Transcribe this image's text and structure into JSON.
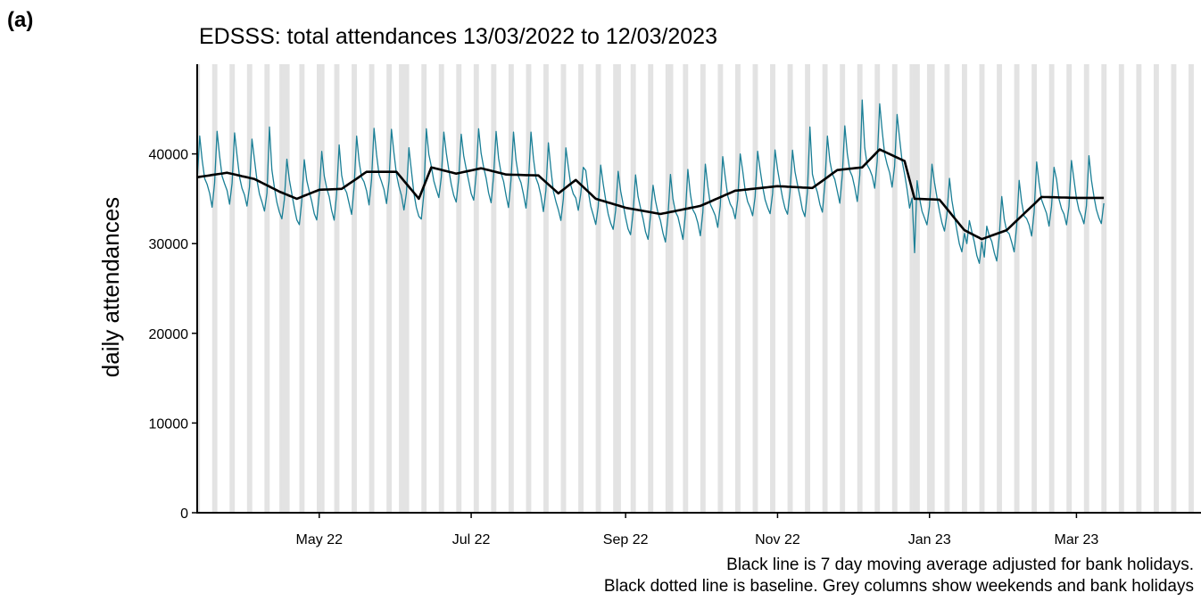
{
  "panel_label": "(a)",
  "chart_data": {
    "type": "line",
    "title": "EDSSS: total attendances 13/03/2022 to 12/03/2023",
    "xlabel": "",
    "ylabel": "daily attendances",
    "x_start": "2022-03-13",
    "x_end": "2023-03-12",
    "xlim": [
      "2022-03-13",
      "2023-04-20"
    ],
    "ylim": [
      0,
      50000
    ],
    "y_ticks": [
      0,
      10000,
      20000,
      30000,
      40000
    ],
    "x_ticks": [
      {
        "date": "2022-05-01",
        "label": "May 22"
      },
      {
        "date": "2022-07-01",
        "label": "Jul 22"
      },
      {
        "date": "2022-09-01",
        "label": "Sep 22"
      },
      {
        "date": "2022-11-01",
        "label": "Nov 22"
      },
      {
        "date": "2023-01-01",
        "label": "Jan 23"
      },
      {
        "date": "2023-03-01",
        "label": "Mar 23"
      }
    ],
    "bank_holidays": [
      "2022-04-15",
      "2022-04-18",
      "2022-05-02",
      "2022-06-02",
      "2022-06-03",
      "2022-08-29",
      "2022-09-19",
      "2022-12-26",
      "2022-12-27",
      "2023-01-02"
    ],
    "weekend_shading": true,
    "series": [
      {
        "label": "daily",
        "color": "#1a7f96",
        "weekly_peak_monday": true,
        "approx_values_by_date": [
          [
            "2022-03-13",
            37000
          ],
          [
            "2022-03-14",
            42000
          ],
          [
            "2022-04-11",
            43000
          ],
          [
            "2022-05-09",
            41000
          ],
          [
            "2022-06-13",
            42800
          ],
          [
            "2022-07-11",
            42500
          ],
          [
            "2022-08-15",
            38500
          ],
          [
            "2022-09-12",
            36500
          ],
          [
            "2022-10-17",
            40000
          ],
          [
            "2022-11-14",
            43000
          ],
          [
            "2022-12-05",
            46000
          ],
          [
            "2022-12-26",
            29000
          ],
          [
            "2023-01-16",
            30000
          ],
          [
            "2023-01-23",
            28500
          ],
          [
            "2023-02-20",
            38500
          ],
          [
            "2023-03-06",
            39800
          ],
          [
            "2023-03-12",
            34500
          ]
        ]
      },
      {
        "label": "7 day moving average",
        "color": "#000000",
        "values_by_date": [
          [
            "2022-03-13",
            37400
          ],
          [
            "2022-03-25",
            37900
          ],
          [
            "2022-04-05",
            37200
          ],
          [
            "2022-04-15",
            35800
          ],
          [
            "2022-04-22",
            35000
          ],
          [
            "2022-05-01",
            36000
          ],
          [
            "2022-05-10",
            36100
          ],
          [
            "2022-05-20",
            38000
          ],
          [
            "2022-06-01",
            38000
          ],
          [
            "2022-06-10",
            35000
          ],
          [
            "2022-06-15",
            38500
          ],
          [
            "2022-06-25",
            37800
          ],
          [
            "2022-07-05",
            38400
          ],
          [
            "2022-07-15",
            37700
          ],
          [
            "2022-07-28",
            37600
          ],
          [
            "2022-08-05",
            35600
          ],
          [
            "2022-08-12",
            37100
          ],
          [
            "2022-08-20",
            35000
          ],
          [
            "2022-09-01",
            34000
          ],
          [
            "2022-09-15",
            33300
          ],
          [
            "2022-10-01",
            34200
          ],
          [
            "2022-10-15",
            35900
          ],
          [
            "2022-11-01",
            36400
          ],
          [
            "2022-11-15",
            36200
          ],
          [
            "2022-11-25",
            38200
          ],
          [
            "2022-12-05",
            38500
          ],
          [
            "2022-12-12",
            40500
          ],
          [
            "2022-12-22",
            39200
          ],
          [
            "2022-12-26",
            35000
          ],
          [
            "2023-01-05",
            34900
          ],
          [
            "2023-01-15",
            31500
          ],
          [
            "2023-01-22",
            30500
          ],
          [
            "2023-02-01",
            31500
          ],
          [
            "2023-02-15",
            35200
          ],
          [
            "2023-03-01",
            35100
          ],
          [
            "2023-03-12",
            35100
          ]
        ]
      }
    ]
  },
  "caption_line1": "Black line is 7 day moving average adjusted for bank holidays.",
  "caption_line2": "Black dotted line is baseline. Grey columns show weekends and bank holidays"
}
